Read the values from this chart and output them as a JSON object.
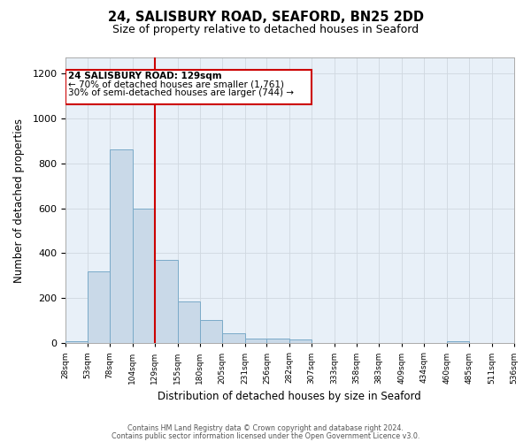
{
  "title_line1": "24, SALISBURY ROAD, SEAFORD, BN25 2DD",
  "title_line2": "Size of property relative to detached houses in Seaford",
  "xlabel": "Distribution of detached houses by size in Seaford",
  "ylabel": "Number of detached properties",
  "bar_edges": [
    28,
    53,
    78,
    104,
    129,
    155,
    180,
    205,
    231,
    256,
    282,
    307,
    333,
    358,
    383,
    409,
    434,
    460,
    485,
    511,
    536
  ],
  "bar_heights": [
    10,
    320,
    860,
    600,
    370,
    185,
    105,
    45,
    20,
    20,
    18,
    0,
    0,
    0,
    0,
    0,
    0,
    10,
    0,
    0
  ],
  "bar_color": "#c9d9e8",
  "bar_edgecolor": "#7aaac8",
  "vline_x": 129,
  "vline_color": "#cc0000",
  "ylim": [
    0,
    1270
  ],
  "annotation_text_line1": "24 SALISBURY ROAD: 129sqm",
  "annotation_text_line2": "← 70% of detached houses are smaller (1,761)",
  "annotation_text_line3": "30% of semi-detached houses are larger (744) →",
  "footer_line1": "Contains HM Land Registry data © Crown copyright and database right 2024.",
  "footer_line2": "Contains public sector information licensed under the Open Government Licence v3.0.",
  "background_color": "#ffffff",
  "axes_bg_color": "#e8f0f8",
  "grid_color": "#d0d8e0",
  "tick_labels": [
    "28sqm",
    "53sqm",
    "78sqm",
    "104sqm",
    "129sqm",
    "155sqm",
    "180sqm",
    "205sqm",
    "231sqm",
    "256sqm",
    "282sqm",
    "307sqm",
    "333sqm",
    "358sqm",
    "383sqm",
    "409sqm",
    "434sqm",
    "460sqm",
    "485sqm",
    "511sqm",
    "536sqm"
  ]
}
